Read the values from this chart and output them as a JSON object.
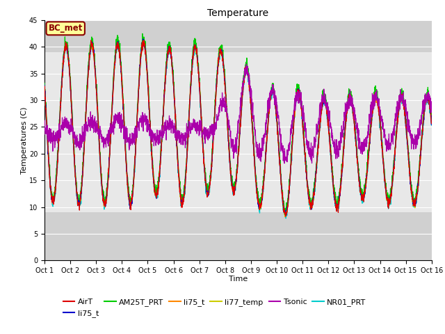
{
  "title": "Temperature",
  "xlabel": "Time",
  "ylabel": "Temperatures (C)",
  "ylim": [
    0,
    45
  ],
  "xlim": [
    0,
    15
  ],
  "x_tick_labels": [
    "Oct 1",
    "Oct 2",
    "Oct 3",
    "Oct 4",
    "Oct 5",
    "Oct 6",
    "Oct 7",
    "Oct 8",
    "Oct 9",
    "Oct 10",
    "Oct 11",
    "Oct 12",
    "Oct 13",
    "Oct 14",
    "Oct 15",
    "Oct 16"
  ],
  "y_ticks": [
    0,
    5,
    10,
    15,
    20,
    25,
    30,
    35,
    40,
    45
  ],
  "annotation_text": "BC_met",
  "annotation_color": "#8b0000",
  "annotation_bg": "#ffff99",
  "fig_bg": "#ffffff",
  "plot_bg": "#e8e8e8",
  "band_dark_bg": "#d0d0d0",
  "band_lower_max": 9.0,
  "band_upper_min": 39.0,
  "grid_color": "#ffffff",
  "legend_entries": [
    {
      "label": "AirT",
      "color": "#dd0000"
    },
    {
      "label": "li75_t",
      "color": "#0000cc"
    },
    {
      "label": "AM25T_PRT",
      "color": "#00cc00"
    },
    {
      "label": "li75_t",
      "color": "#ff8800"
    },
    {
      "label": "li77_temp",
      "color": "#cccc00"
    },
    {
      "label": "Tsonic",
      "color": "#aa00aa"
    },
    {
      "label": "NR01_PRT",
      "color": "#00cccc"
    }
  ],
  "title_fontsize": 10,
  "axis_label_fontsize": 8,
  "tick_fontsize": 7,
  "legend_fontsize": 8
}
